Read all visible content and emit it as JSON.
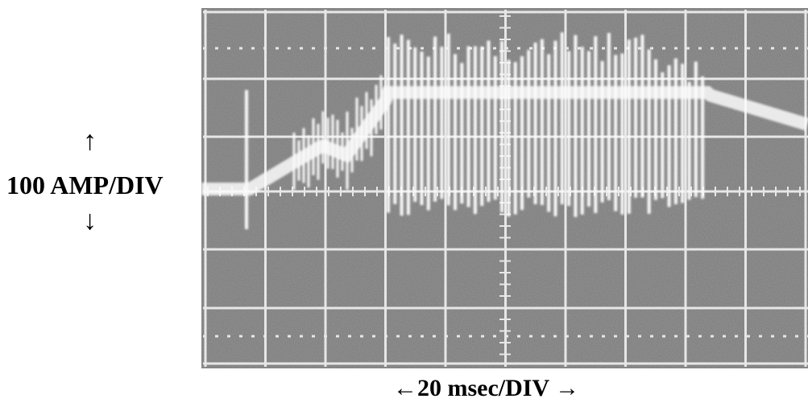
{
  "axis_labels": {
    "vertical_up_arrow": "↑",
    "vertical": "100 AMP/DIV",
    "vertical_down_arrow": "↓",
    "horizontal": "←20 msec/DIV →"
  }
}
